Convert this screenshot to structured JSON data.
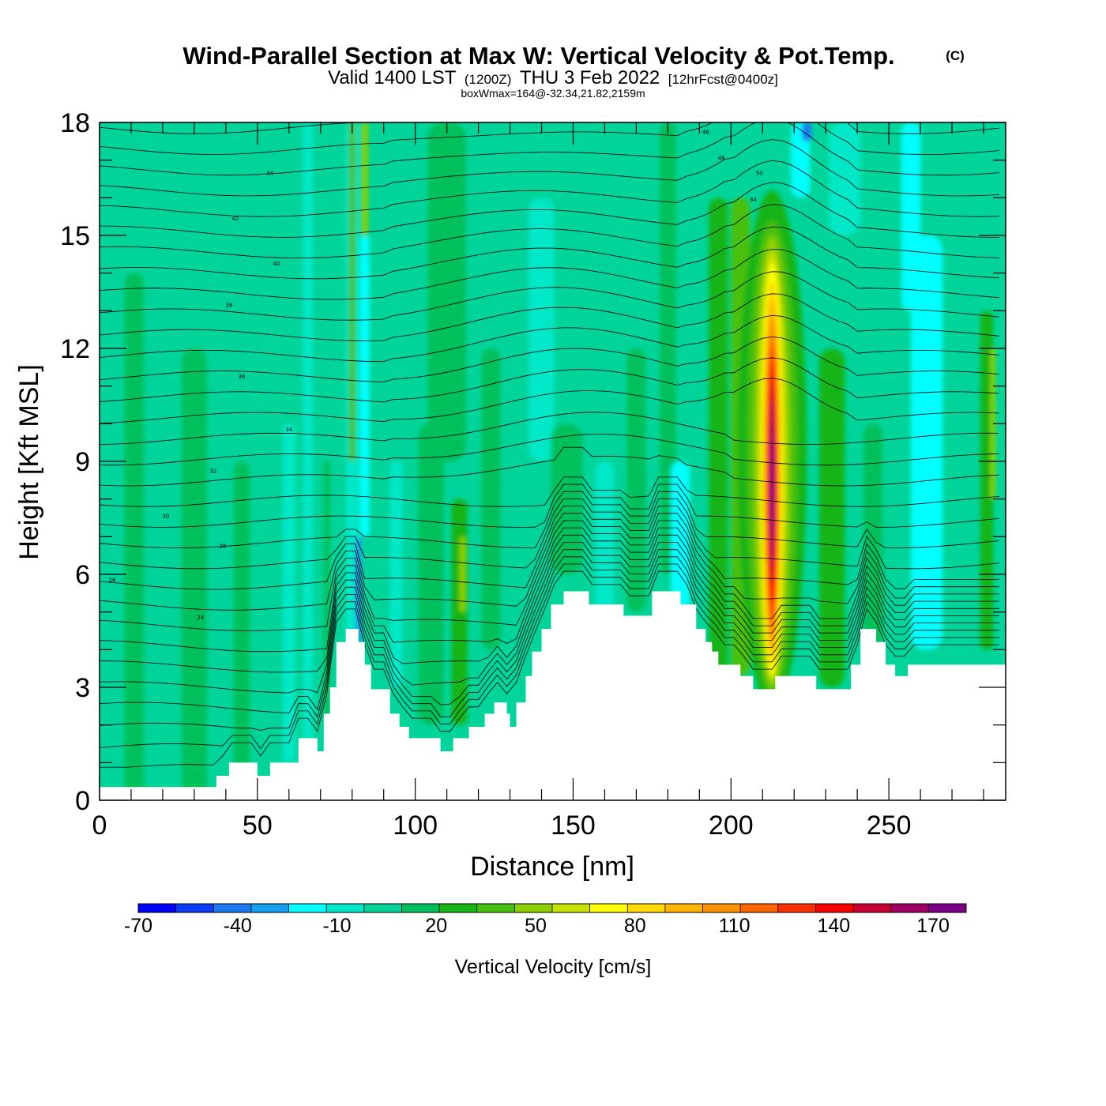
{
  "title": "Wind-Parallel Section at Max W: Vertical Velocity & Pot.Temp.",
  "copyright_mark": "(C)",
  "subtitle": {
    "valid_prefix": "Valid 1400 LST",
    "utc": "(1200Z)",
    "date": "THU 3 Feb 2022",
    "forecast": "[12hrFcst@0400z]"
  },
  "box_info": "boxWmax=164@-32.34,21.82,2159m",
  "chart_data": {
    "type": "heatmap",
    "xlabel": "Distance [nm]",
    "ylabel": "Height [Kft MSL]",
    "xlim": [
      0,
      287
    ],
    "ylim": [
      0,
      18
    ],
    "x_ticks": [
      0,
      50,
      100,
      150,
      200,
      250
    ],
    "y_ticks": [
      0,
      3,
      6,
      9,
      12,
      15,
      18
    ],
    "colorbar": {
      "label": "Vertical Velocity [cm/s]",
      "range": [
        -70,
        180
      ],
      "tick_values": [
        -70,
        -40,
        -10,
        20,
        50,
        80,
        110,
        140,
        170
      ],
      "colors": [
        "#0000ff",
        "#0a3cf8",
        "#1e78f0",
        "#14a0f0",
        "#00ffff",
        "#00e8c8",
        "#00d49a",
        "#00c05c",
        "#18b414",
        "#48c010",
        "#8cd000",
        "#c8e000",
        "#ffff00",
        "#ffd800",
        "#ffb400",
        "#ff9000",
        "#ff6400",
        "#ff3000",
        "#ff0000",
        "#c80032",
        "#a00064",
        "#7c0086"
      ]
    },
    "updraft_max": {
      "x": 213,
      "z_min": 3,
      "z_max": 15.5,
      "peak_z": 8.5,
      "peak_value": 164
    },
    "terrain": [
      [
        0,
        0.35
      ],
      [
        37,
        0.35
      ],
      [
        37,
        0.65
      ],
      [
        41,
        0.65
      ],
      [
        41,
        1.0
      ],
      [
        50,
        1.0
      ],
      [
        50,
        0.65
      ],
      [
        54,
        0.65
      ],
      [
        54,
        1.0
      ],
      [
        63,
        1.0
      ],
      [
        63,
        1.65
      ],
      [
        69,
        1.65
      ],
      [
        69,
        1.3
      ],
      [
        71,
        1.3
      ],
      [
        71,
        2.3
      ],
      [
        73,
        2.3
      ],
      [
        73,
        3.0
      ],
      [
        75,
        3.0
      ],
      [
        75,
        4.2
      ],
      [
        78,
        4.2
      ],
      [
        78,
        4.55
      ],
      [
        82,
        4.55
      ],
      [
        82,
        4.2
      ],
      [
        84,
        4.2
      ],
      [
        84,
        3.6
      ],
      [
        86,
        3.6
      ],
      [
        86,
        2.95
      ],
      [
        92,
        2.95
      ],
      [
        92,
        2.3
      ],
      [
        95,
        2.3
      ],
      [
        95,
        1.95
      ],
      [
        98,
        1.95
      ],
      [
        98,
        1.65
      ],
      [
        108,
        1.65
      ],
      [
        108,
        1.3
      ],
      [
        112,
        1.3
      ],
      [
        112,
        1.65
      ],
      [
        117,
        1.65
      ],
      [
        117,
        1.95
      ],
      [
        122,
        1.95
      ],
      [
        122,
        2.3
      ],
      [
        125,
        2.3
      ],
      [
        125,
        2.6
      ],
      [
        129,
        2.6
      ],
      [
        129,
        2.3
      ],
      [
        130,
        2.3
      ],
      [
        130,
        1.95
      ],
      [
        132,
        1.95
      ],
      [
        132,
        2.6
      ],
      [
        135,
        2.6
      ],
      [
        135,
        3.3
      ],
      [
        137,
        3.3
      ],
      [
        137,
        3.95
      ],
      [
        140,
        3.95
      ],
      [
        140,
        4.55
      ],
      [
        143,
        4.55
      ],
      [
        143,
        5.2
      ],
      [
        147,
        5.2
      ],
      [
        147,
        5.55
      ],
      [
        155,
        5.55
      ],
      [
        155,
        5.2
      ],
      [
        166,
        5.2
      ],
      [
        166,
        4.9
      ],
      [
        175,
        4.9
      ],
      [
        175,
        5.55
      ],
      [
        184,
        5.55
      ],
      [
        184,
        5.2
      ],
      [
        189,
        5.2
      ],
      [
        189,
        4.55
      ],
      [
        192,
        4.55
      ],
      [
        192,
        4.2
      ],
      [
        194,
        4.2
      ],
      [
        194,
        3.95
      ],
      [
        196,
        3.95
      ],
      [
        196,
        3.6
      ],
      [
        203,
        3.6
      ],
      [
        203,
        3.3
      ],
      [
        207,
        3.3
      ],
      [
        207,
        2.95
      ],
      [
        214,
        2.95
      ],
      [
        214,
        3.3
      ],
      [
        227,
        3.3
      ],
      [
        227,
        2.95
      ],
      [
        238,
        2.95
      ],
      [
        238,
        3.6
      ],
      [
        241,
        3.6
      ],
      [
        241,
        4.55
      ],
      [
        246,
        4.55
      ],
      [
        246,
        4.2
      ],
      [
        249,
        4.2
      ],
      [
        249,
        3.6
      ],
      [
        252,
        3.6
      ],
      [
        252,
        3.3
      ],
      [
        256,
        3.3
      ],
      [
        256,
        3.6
      ],
      [
        287,
        3.6
      ]
    ],
    "theta_contour_labels": [
      "44",
      "42",
      "40",
      "38",
      "36",
      "34",
      "32",
      "30",
      "28",
      "26",
      "24",
      "46",
      "48",
      "50",
      "34"
    ]
  }
}
